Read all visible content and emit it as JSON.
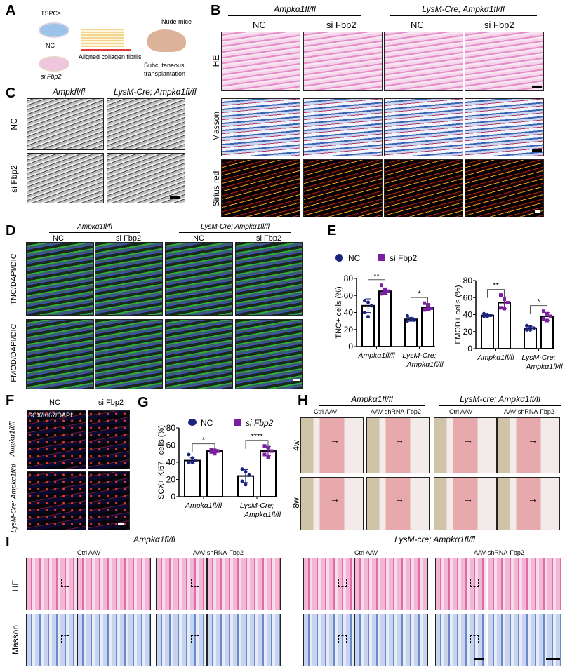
{
  "panels": {
    "A": "A",
    "B": "B",
    "C": "C",
    "D": "D",
    "E": "E",
    "F": "F",
    "G": "G",
    "H": "H",
    "I": "I"
  },
  "a": {
    "tspcs": "TSPCs",
    "nc": "NC",
    "si": "si Fbp2",
    "fibrils": "Aligned collagen fibrils",
    "mice": "Nude mice",
    "transplant1": "Subcutaneous",
    "transplant2": "transplantation"
  },
  "geno": {
    "wt": "Ampkα1fl/fl",
    "ko": "LysM-Cre; Ampkα1fl/fl",
    "wt_c": "Ampkfl/fl",
    "ko_lower": "LysM-cre; Ampkα1fl/fl"
  },
  "groups": {
    "nc": "NC",
    "si": "si Fbp2",
    "ctrl": "Ctrl AAV",
    "sh": "AAV-shRNA-Fbp2"
  },
  "rows": {
    "he": "HE",
    "masson": "Masson",
    "sirius": "Sirius red",
    "nc": "NC",
    "si": "si Fbp2",
    "tnc": "TNC/DAPI/DIC",
    "fmod": "FMOD/DAPI/DIC",
    "scx": "SCX/Ki67/DAPI",
    "w4": "4w",
    "w8": "8w"
  },
  "colors": {
    "nc": "#1a237e",
    "si": "#7b1fa2"
  },
  "chart_data": [
    {
      "id": "E1",
      "type": "bar",
      "ylabel": "TNC+ cells (%)",
      "ylim": [
        0,
        80
      ],
      "yticks": [
        0,
        20,
        40,
        60,
        80
      ],
      "categories": [
        "Ampkα1fl/fl",
        "LysM-Cre; Ampkα1fl/fl"
      ],
      "legend": [
        "NC",
        "si Fbp2"
      ],
      "series": [
        {
          "name": "NC",
          "values": [
            48,
            32
          ],
          "points": [
            [
              54,
              52,
              48,
              40,
              35
            ],
            [
              36,
              32,
              31,
              30,
              31
            ]
          ]
        },
        {
          "name": "si Fbp2",
          "values": [
            65,
            46
          ],
          "points": [
            [
              72,
              67,
              65,
              62,
              63
            ],
            [
              51,
              49,
              45,
              43,
              44
            ]
          ]
        }
      ],
      "significance": [
        "**",
        "*"
      ]
    },
    {
      "id": "E2",
      "type": "bar",
      "ylabel": "FMOD+ cells (%)",
      "ylim": [
        0,
        80
      ],
      "yticks": [
        0,
        20,
        40,
        60,
        80
      ],
      "categories": [
        "Ampkα1fl/fl",
        "LysM-Cre; Ampkα1fl/fl"
      ],
      "series": [
        {
          "name": "NC",
          "values": [
            39,
            24
          ],
          "points": [
            [
              41,
              40,
              39,
              38,
              38
            ],
            [
              27,
              26,
              24,
              22,
              22
            ]
          ]
        },
        {
          "name": "si Fbp2",
          "values": [
            54,
            38
          ],
          "points": [
            [
              63,
              58,
              54,
              48,
              47
            ],
            [
              44,
              41,
              38,
              35,
              33
            ]
          ]
        }
      ],
      "significance": [
        "**",
        "*"
      ]
    },
    {
      "id": "G",
      "type": "bar",
      "ylabel": "SCX+ Ki67+ cells (%)",
      "ylim": [
        0,
        80
      ],
      "yticks": [
        0,
        20,
        40,
        60,
        80
      ],
      "categories": [
        "Ampkα1fl/fl",
        "LysM-Cre; Ampkα1fl/fl"
      ],
      "legend": [
        "NC",
        "si Fbp2"
      ],
      "series": [
        {
          "name": "NC",
          "values": [
            42,
            24
          ],
          "points": [
            [
              49,
              45,
              42,
              40,
              40
            ],
            [
              32,
              29,
              25,
              18,
              14
            ]
          ]
        },
        {
          "name": "si Fbp2",
          "values": [
            53,
            53
          ],
          "points": [
            [
              55,
              54,
              53,
              52,
              50
            ],
            [
              59,
              57,
              53,
              49,
              46
            ]
          ]
        }
      ],
      "significance": [
        "*",
        "****"
      ]
    }
  ]
}
